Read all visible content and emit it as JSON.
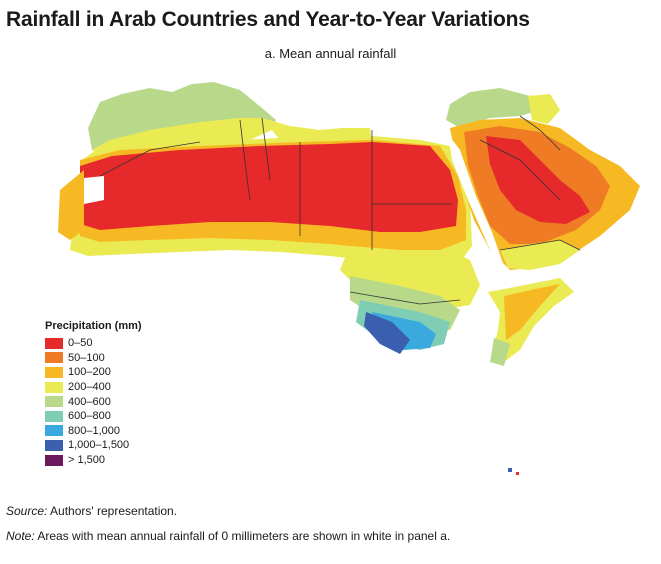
{
  "title": "Rainfall in Arab Countries and Year-to-Year Variations",
  "subtitle": "a.  Mean annual rainfall",
  "legend": {
    "title": "Precipitation (mm)",
    "items": [
      {
        "label": "0–50",
        "color": "#e6292b"
      },
      {
        "label": "50–100",
        "color": "#ef7c25"
      },
      {
        "label": "100–200",
        "color": "#f6b923"
      },
      {
        "label": "200–400",
        "color": "#eaea52"
      },
      {
        "label": "400–600",
        "color": "#b9d98a"
      },
      {
        "label": "600–800",
        "color": "#7fcdb5"
      },
      {
        "label": "800–1,000",
        "color": "#3aa9de"
      },
      {
        "label": "1,000–1,500",
        "color": "#3a5fae"
      },
      {
        "label": "> 1,500",
        "color": "#6b1a5c"
      }
    ]
  },
  "source": {
    "label": "Source:",
    "text": " Authors' representation."
  },
  "note": {
    "label": "Note:",
    "text": " Areas with mean annual rainfall of 0 millimeters are shown in white in panel a."
  }
}
